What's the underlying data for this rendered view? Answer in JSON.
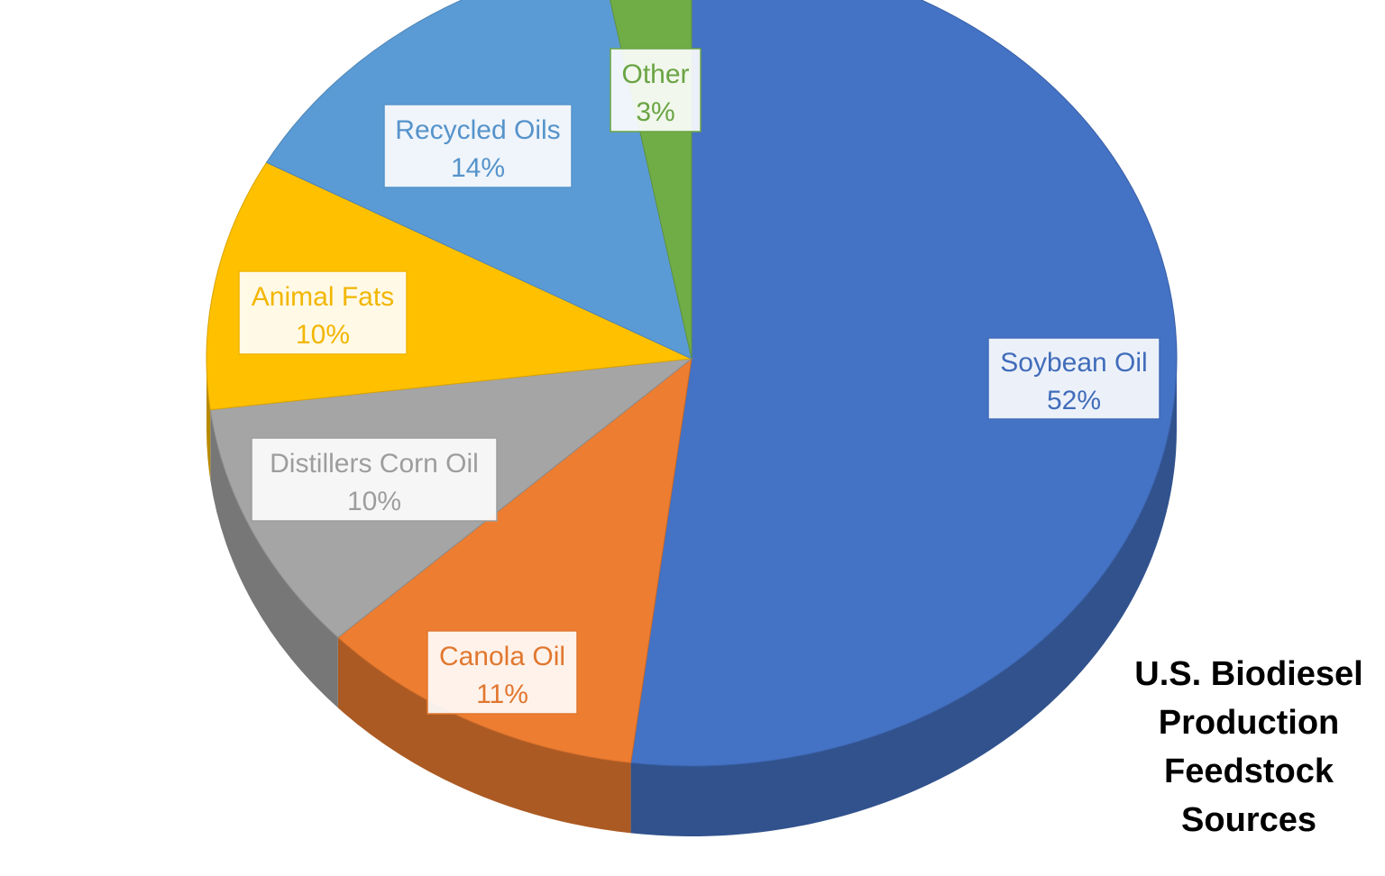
{
  "chart_data": {
    "type": "pie",
    "title": "U.S. Biodiesel Production Feedstock Sources",
    "title_lines": [
      "U.S. Biodiesel",
      "Production",
      "Feedstock",
      "Sources"
    ],
    "legend": "none",
    "slices": [
      {
        "label": "Soybean Oil",
        "value": 52,
        "display": "52%",
        "color": "#4472C4"
      },
      {
        "label": "Canola Oil",
        "value": 11,
        "display": "11%",
        "color": "#ED7D31"
      },
      {
        "label": "Distillers Corn Oil",
        "value": 10,
        "display": "10%",
        "color": "#A5A5A5"
      },
      {
        "label": "Animal Fats",
        "value": 10,
        "display": "10%",
        "color": "#FFC000"
      },
      {
        "label": "Recycled Oils",
        "value": 14,
        "display": "14%",
        "color": "#5B9BD5"
      },
      {
        "label": "Other",
        "value": 3,
        "display": "3%",
        "color": "#70AD47"
      }
    ]
  }
}
